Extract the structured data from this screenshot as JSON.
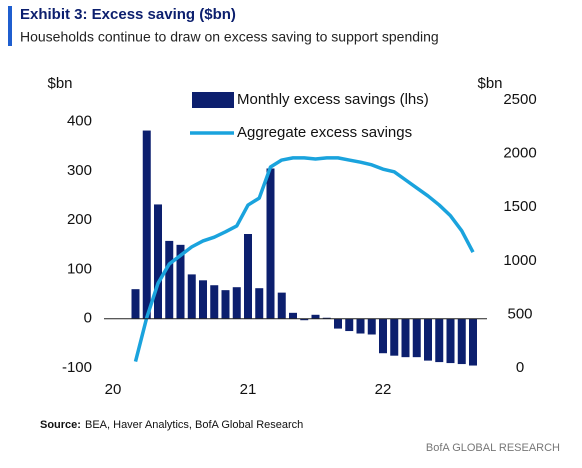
{
  "chart_data": {
    "type": "bar_line",
    "title": "Exhibit 3: Excess saving ($bn)",
    "subtitle": "Households continue to draw on excess saving to support spending",
    "y_axis_label": "$bn",
    "y2_axis_label": "$bn",
    "categories": [
      "20",
      null,
      null,
      null,
      null,
      null,
      null,
      null,
      null,
      null,
      null,
      null,
      "21",
      null,
      null,
      null,
      null,
      null,
      null,
      null,
      null,
      null,
      null,
      null,
      "22",
      null,
      null,
      null,
      null,
      null,
      null,
      null,
      null
    ],
    "series": [
      {
        "name": "Monthly excess savings (lhs)",
        "type": "bar",
        "color": "#0c1f6e",
        "values": [
          null,
          null,
          60,
          382,
          232,
          158,
          150,
          90,
          78,
          68,
          58,
          64,
          172,
          62,
          305,
          53,
          12,
          -3,
          8,
          2,
          -20,
          -25,
          -30,
          -32,
          -70,
          -75,
          -78,
          -78,
          -85,
          -88,
          -90,
          -92,
          -95
        ]
      },
      {
        "name": "Aggregate excess savings",
        "type": "line",
        "axis": "y2",
        "color": "#1aa3dd",
        "values": [
          null,
          null,
          60,
          470,
          790,
          970,
          1050,
          1130,
          1185,
          1220,
          1270,
          1325,
          1520,
          1585,
          1875,
          1940,
          1960,
          1960,
          1950,
          1960,
          1960,
          1940,
          1920,
          1895,
          1855,
          1830,
          1755,
          1680,
          1605,
          1520,
          1420,
          1280,
          1080
        ]
      }
    ],
    "ylim": [
      -100,
      444
    ],
    "yticks": [
      -100,
      0,
      100,
      200,
      300,
      400
    ],
    "y2lim": [
      0,
      2500
    ],
    "y2ticks": [
      0,
      500,
      1000,
      1500,
      2000,
      2500
    ],
    "source_label": "Source:",
    "source": "BEA, Haver Analytics, BofA Global Research",
    "footer": "BofA GLOBAL RESEARCH"
  }
}
